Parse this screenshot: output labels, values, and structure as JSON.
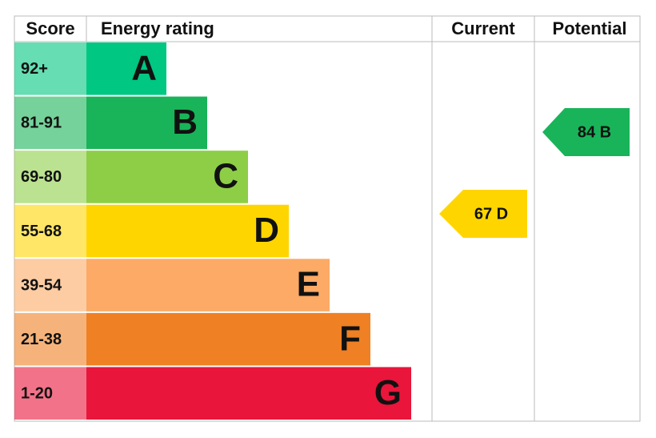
{
  "chart_data": {
    "type": "epc",
    "columns": [
      "Score",
      "Energy rating",
      "Current",
      "Potential"
    ],
    "bands": [
      {
        "score": "92+",
        "letter": "A",
        "color": "#00c781"
      },
      {
        "score": "81-91",
        "letter": "B",
        "color": "#19b459"
      },
      {
        "score": "69-80",
        "letter": "C",
        "color": "#8dce46"
      },
      {
        "score": "55-68",
        "letter": "D",
        "color": "#ffd500"
      },
      {
        "score": "39-54",
        "letter": "E",
        "color": "#fcaa65"
      },
      {
        "score": "21-38",
        "letter": "F",
        "color": "#ef8023"
      },
      {
        "score": "1-20",
        "letter": "G",
        "color": "#e9153b"
      }
    ],
    "current": {
      "value": 67,
      "label": "67 D",
      "color": "#ffd500"
    },
    "potential": {
      "value": 84,
      "label": "84 B",
      "color": "#19b459"
    }
  }
}
